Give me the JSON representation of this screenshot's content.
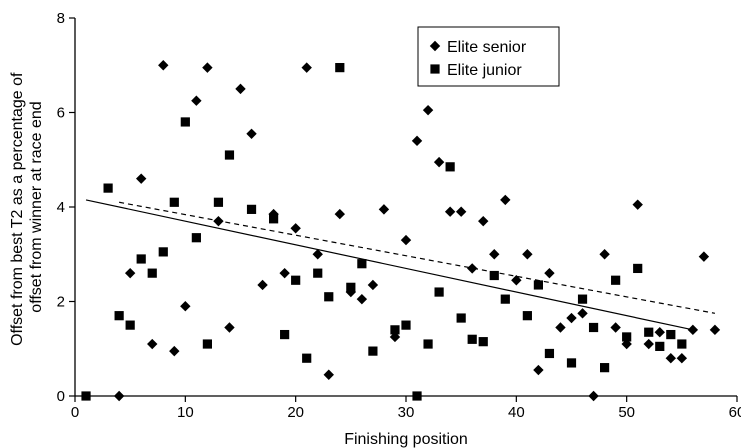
{
  "chart_data": {
    "type": "scatter",
    "xlabel": "Finishing position",
    "ylabel": [
      "Offset from best T2 as a percentage of",
      "offset from winner at race end"
    ],
    "xlim": [
      0,
      60
    ],
    "ylim": [
      0,
      8
    ],
    "xticks": [
      0,
      10,
      20,
      30,
      40,
      50,
      60
    ],
    "yticks": [
      0,
      2,
      4,
      6,
      8
    ],
    "grid": false,
    "legend_position": "top-right",
    "series": [
      {
        "name": "Elite senior",
        "marker": "diamond",
        "color": "#000000",
        "points": [
          [
            4,
            0.0
          ],
          [
            5,
            2.6
          ],
          [
            6,
            4.6
          ],
          [
            7,
            1.1
          ],
          [
            8,
            7.0
          ],
          [
            9,
            0.95
          ],
          [
            10,
            1.9
          ],
          [
            11,
            6.25
          ],
          [
            12,
            6.95
          ],
          [
            13,
            3.7
          ],
          [
            14,
            1.45
          ],
          [
            15,
            6.5
          ],
          [
            16,
            5.55
          ],
          [
            17,
            2.35
          ],
          [
            18,
            3.85
          ],
          [
            19,
            2.6
          ],
          [
            20,
            3.55
          ],
          [
            21,
            6.95
          ],
          [
            22,
            3.0
          ],
          [
            23,
            0.45
          ],
          [
            24,
            3.85
          ],
          [
            25,
            2.2
          ],
          [
            26,
            2.05
          ],
          [
            27,
            2.35
          ],
          [
            28,
            3.95
          ],
          [
            29,
            1.25
          ],
          [
            30,
            3.3
          ],
          [
            31,
            5.4
          ],
          [
            32,
            6.05
          ],
          [
            33,
            4.95
          ],
          [
            34,
            3.9
          ],
          [
            35,
            3.9
          ],
          [
            36,
            2.7
          ],
          [
            37,
            3.7
          ],
          [
            38,
            3.0
          ],
          [
            39,
            4.15
          ],
          [
            40,
            2.45
          ],
          [
            41,
            3.0
          ],
          [
            42,
            0.55
          ],
          [
            43,
            2.6
          ],
          [
            44,
            1.45
          ],
          [
            45,
            1.65
          ],
          [
            46,
            1.75
          ],
          [
            47,
            0.0
          ],
          [
            48,
            3.0
          ],
          [
            49,
            1.45
          ],
          [
            50,
            1.1
          ],
          [
            51,
            4.05
          ],
          [
            52,
            1.1
          ],
          [
            53,
            1.35
          ],
          [
            54,
            0.8
          ],
          [
            55,
            0.8
          ],
          [
            56,
            1.4
          ],
          [
            57,
            2.95
          ],
          [
            58,
            1.4
          ]
        ]
      },
      {
        "name": "Elite junior",
        "marker": "square",
        "color": "#000000",
        "points": [
          [
            1,
            0.0
          ],
          [
            3,
            4.4
          ],
          [
            4,
            1.7
          ],
          [
            5,
            1.5
          ],
          [
            6,
            2.9
          ],
          [
            7,
            2.6
          ],
          [
            8,
            3.05
          ],
          [
            9,
            4.1
          ],
          [
            10,
            5.8
          ],
          [
            11,
            3.35
          ],
          [
            12,
            1.1
          ],
          [
            13,
            4.1
          ],
          [
            14,
            5.1
          ],
          [
            16,
            3.95
          ],
          [
            18,
            3.75
          ],
          [
            19,
            1.3
          ],
          [
            20,
            2.45
          ],
          [
            21,
            0.8
          ],
          [
            22,
            2.6
          ],
          [
            23,
            2.1
          ],
          [
            24,
            6.95
          ],
          [
            25,
            2.3
          ],
          [
            26,
            2.8
          ],
          [
            27,
            0.95
          ],
          [
            29,
            1.4
          ],
          [
            30,
            1.5
          ],
          [
            31,
            0.0
          ],
          [
            32,
            1.1
          ],
          [
            33,
            2.2
          ],
          [
            34,
            4.85
          ],
          [
            35,
            1.65
          ],
          [
            36,
            1.2
          ],
          [
            37,
            1.15
          ],
          [
            38,
            2.55
          ],
          [
            39,
            2.05
          ],
          [
            41,
            1.7
          ],
          [
            42,
            2.35
          ],
          [
            43,
            0.9
          ],
          [
            45,
            0.7
          ],
          [
            46,
            2.05
          ],
          [
            47,
            1.45
          ],
          [
            48,
            0.6
          ],
          [
            49,
            2.45
          ],
          [
            50,
            1.25
          ],
          [
            51,
            2.7
          ],
          [
            52,
            1.35
          ],
          [
            53,
            1.05
          ],
          [
            54,
            1.3
          ],
          [
            55,
            1.1
          ]
        ]
      }
    ],
    "trendlines": [
      {
        "series": "Elite senior",
        "style": "dashed",
        "x": [
          4,
          58
        ],
        "y": [
          4.1,
          1.75
        ]
      },
      {
        "series": "Elite junior",
        "style": "solid",
        "x": [
          1,
          56
        ],
        "y": [
          4.15,
          1.4
        ]
      }
    ]
  }
}
